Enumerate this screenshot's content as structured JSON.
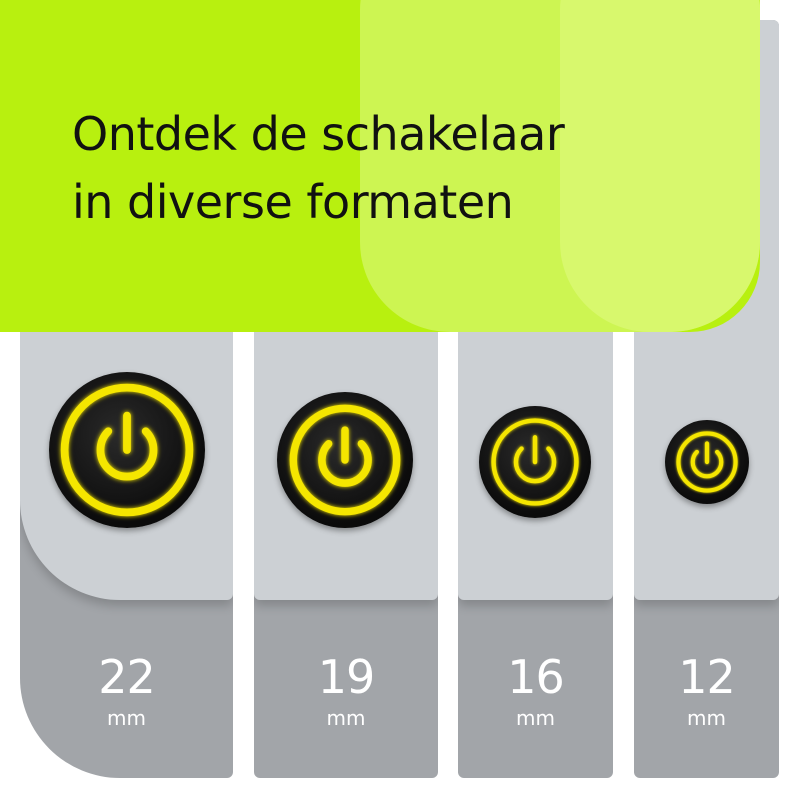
{
  "headline": {
    "line1": "Ontdek de schakelaar",
    "line2": "in diverse formaten"
  },
  "colors": {
    "banner": "#b8f00f",
    "panel_light": "#ccd0d4",
    "panel_dark": "#a2a5a9",
    "ring_glow": "#f5e600"
  },
  "sizes": [
    {
      "value": "22",
      "unit": "mm",
      "icon": "power-icon"
    },
    {
      "value": "19",
      "unit": "mm",
      "icon": "power-icon"
    },
    {
      "value": "16",
      "unit": "mm",
      "icon": "power-icon"
    },
    {
      "value": "12",
      "unit": "mm",
      "icon": "power-icon"
    }
  ]
}
